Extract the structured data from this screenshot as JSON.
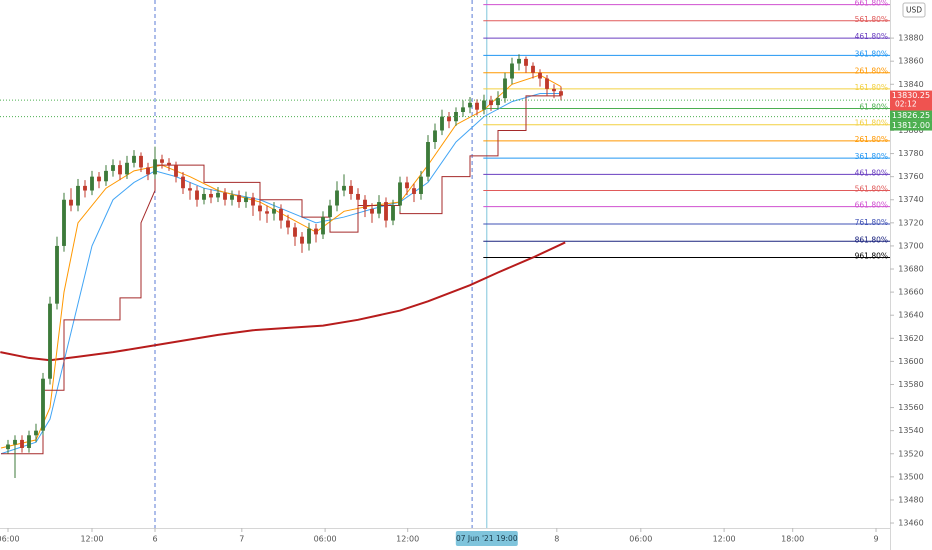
{
  "chart_data": {
    "type": "candlestick",
    "currency": "USD",
    "xlim": [
      -1.143,
      126
    ],
    "ylim": [
      13455.7,
      13913
    ],
    "xticks": [
      {
        "value": 0,
        "label": "06:00"
      },
      {
        "value": 12,
        "label": "12:00"
      },
      {
        "value": 21,
        "label": "6"
      },
      {
        "value": 33.4,
        "label": "7"
      },
      {
        "value": 45.3,
        "label": "06:00"
      },
      {
        "value": 57.1,
        "label": "12:00"
      },
      {
        "value": 78.4,
        "label": "8"
      },
      {
        "value": 90.4,
        "label": "06:00"
      },
      {
        "value": 102.3,
        "label": "12:00"
      },
      {
        "value": 112.1,
        "label": "18:00"
      },
      {
        "value": 124,
        "label": "9"
      }
    ],
    "yticks": [
      13460,
      13480,
      13500,
      13520,
      13540,
      13560,
      13580,
      13600,
      13620,
      13640,
      13660,
      13680,
      13700,
      13720,
      13740,
      13760,
      13780,
      13800,
      13820,
      13840,
      13860,
      13880
    ],
    "candles": {
      "up_color": "#3d7a3a",
      "down_color": "#c0392b",
      "x": [
        0,
        1,
        2,
        3,
        4,
        5,
        6,
        7,
        8,
        9,
        10,
        11,
        12,
        13,
        14,
        15,
        16,
        17,
        18,
        19,
        20,
        21,
        22,
        23,
        24,
        25,
        26,
        27,
        28,
        29,
        30,
        31,
        32,
        33,
        34,
        35,
        36,
        37,
        38,
        39,
        40,
        41,
        42,
        43,
        44,
        45,
        46,
        47,
        48,
        49,
        50,
        51,
        52,
        53,
        54,
        55,
        56,
        57,
        58,
        59,
        60,
        61,
        62,
        63,
        64,
        65,
        66,
        67,
        68,
        69,
        70,
        71,
        72,
        73,
        74,
        75,
        76,
        77,
        78,
        79
      ],
      "open": [
        13524,
        13528,
        13532,
        13525,
        13536,
        13540,
        13585,
        13650,
        13700,
        13740,
        13735,
        13752,
        13748,
        13760,
        13756,
        13765,
        13770,
        13762,
        13772,
        13778,
        13768,
        13762,
        13775,
        13772,
        13770,
        13760,
        13750,
        13748,
        13740,
        13745,
        13742,
        13746,
        13740,
        13744,
        13738,
        13742,
        13735,
        13730,
        13728,
        13732,
        13722,
        13716,
        13708,
        13702,
        13715,
        13710,
        13725,
        13735,
        13748,
        13752,
        13745,
        13740,
        13732,
        13728,
        13738,
        13722,
        13735,
        13755,
        13750,
        13745,
        13760,
        13790,
        13800,
        13812,
        13808,
        13816,
        13820,
        13824,
        13818,
        13826,
        13822,
        13828,
        13845,
        13858,
        13862,
        13856,
        13850,
        13845,
        13836,
        13834
      ],
      "high": [
        13532,
        13536,
        13536,
        13540,
        13546,
        13590,
        13656,
        13708,
        13746,
        13750,
        13758,
        13757,
        13765,
        13764,
        13770,
        13775,
        13774,
        13778,
        13783,
        13781,
        13772,
        13786,
        13779,
        13776,
        13773,
        13764,
        13755,
        13752,
        13750,
        13749,
        13751,
        13750,
        13748,
        13748,
        13747,
        13746,
        13740,
        13735,
        13738,
        13736,
        13727,
        13720,
        13712,
        13720,
        13719,
        13730,
        13740,
        13756,
        13762,
        13757,
        13750,
        13744,
        13737,
        13744,
        13742,
        13740,
        13760,
        13760,
        13754,
        13765,
        13796,
        13806,
        13818,
        13816,
        13820,
        13826,
        13829,
        13827,
        13831,
        13830,
        13834,
        13850,
        13863,
        13866,
        13864,
        13859,
        13853,
        13848,
        13840,
        13838
      ],
      "low": [
        13520,
        13499,
        13521,
        13521,
        13530,
        13536,
        13580,
        13645,
        13695,
        13730,
        13730,
        13742,
        13744,
        13750,
        13752,
        13760,
        13757,
        13758,
        13768,
        13764,
        13757,
        13758,
        13767,
        13765,
        13755,
        13745,
        13740,
        13734,
        13736,
        13737,
        13738,
        13735,
        13735,
        13733,
        13733,
        13726,
        13722,
        13720,
        13722,
        13715,
        13710,
        13700,
        13694,
        13696,
        13703,
        13706,
        13720,
        13730,
        13743,
        13740,
        13733,
        13725,
        13720,
        13724,
        13716,
        13718,
        13730,
        13744,
        13738,
        13740,
        13756,
        13784,
        13796,
        13802,
        13804,
        13812,
        13815,
        13813,
        13814,
        13817,
        13818,
        13824,
        13840,
        13852,
        13850,
        13845,
        13838,
        13830,
        13828,
        13826
      ],
      "close": [
        13528,
        13532,
        13525,
        13536,
        13540,
        13585,
        13650,
        13700,
        13740,
        13735,
        13752,
        13748,
        13760,
        13756,
        13765,
        13770,
        13762,
        13772,
        13778,
        13768,
        13762,
        13775,
        13772,
        13770,
        13760,
        13750,
        13748,
        13740,
        13745,
        13742,
        13746,
        13740,
        13744,
        13738,
        13742,
        13735,
        13730,
        13728,
        13732,
        13722,
        13716,
        13708,
        13702,
        13715,
        13710,
        13725,
        13735,
        13748,
        13752,
        13745,
        13740,
        13732,
        13728,
        13738,
        13722,
        13735,
        13755,
        13750,
        13745,
        13760,
        13790,
        13800,
        13812,
        13808,
        13816,
        13820,
        13824,
        13818,
        13826,
        13822,
        13828,
        13845,
        13858,
        13862,
        13856,
        13850,
        13845,
        13836,
        13834,
        13830.25
      ]
    },
    "indicators": [
      {
        "color": "#b71c1c",
        "width": 2,
        "x": [
          -1.1,
          3,
          6,
          10,
          15,
          21,
          25,
          30,
          35,
          40,
          45,
          50,
          56,
          60,
          66,
          70,
          75,
          79.6
        ],
        "values": [
          13608,
          13603,
          13601,
          13604,
          13608,
          13614,
          13618,
          13623,
          13627,
          13629,
          13631,
          13636,
          13644,
          13652,
          13666,
          13677,
          13690,
          13703
        ]
      },
      {
        "color": "#42a5f5",
        "width": 1,
        "x": [
          -1,
          4,
          6,
          8,
          10,
          12,
          15,
          18,
          21,
          24,
          28,
          32,
          36,
          40,
          44,
          48,
          52,
          56,
          60,
          64,
          68,
          72,
          76,
          79
        ],
        "values": [
          13520,
          13530,
          13550,
          13600,
          13650,
          13700,
          13740,
          13755,
          13765,
          13760,
          13750,
          13745,
          13740,
          13730,
          13720,
          13725,
          13732,
          13738,
          13755,
          13790,
          13812,
          13825,
          13832,
          13832
        ]
      },
      {
        "color": "#ff9800",
        "width": 1,
        "x": [
          -1,
          4,
          6,
          7,
          8,
          10,
          14,
          18,
          22,
          26,
          30,
          36,
          40,
          44,
          48,
          52,
          56,
          60,
          64,
          68,
          72,
          76,
          79
        ],
        "values": [
          13525,
          13532,
          13560,
          13610,
          13660,
          13720,
          13750,
          13765,
          13770,
          13760,
          13748,
          13738,
          13725,
          13712,
          13730,
          13735,
          13738,
          13770,
          13805,
          13818,
          13840,
          13848,
          13838
        ]
      },
      {
        "color": "#a52a2a",
        "width": 1,
        "x": [
          -1,
          5,
          5,
          8,
          8,
          16,
          16,
          19,
          19,
          21,
          21,
          28,
          28,
          36,
          36,
          42,
          42,
          46,
          46,
          50,
          50,
          56,
          56,
          62,
          62,
          66,
          66,
          70,
          70,
          74,
          74,
          79
        ],
        "values": [
          13520,
          13520,
          13575,
          13575,
          13636,
          13636,
          13655,
          13655,
          13720,
          13748,
          13770,
          13770,
          13755,
          13755,
          13740,
          13740,
          13725,
          13725,
          13712,
          13712,
          13735,
          13735,
          13728,
          13728,
          13760,
          13760,
          13778,
          13778,
          13800,
          13800,
          13830,
          13830
        ]
      }
    ],
    "fib": {
      "start_x": 67.9,
      "levels": [
        {
          "label": "661.80%",
          "value": 13909,
          "color": "#d050d0"
        },
        {
          "label": "561.80%",
          "value": 13895,
          "color": "#e05a5a"
        },
        {
          "label": "461.80%",
          "value": 13880,
          "color": "#6a3fc0"
        },
        {
          "label": "361.80%",
          "value": 13865,
          "color": "#2196f3"
        },
        {
          "label": "261.80%",
          "value": 13850,
          "color": "#ff9800"
        },
        {
          "label": "161.80%",
          "value": 13836,
          "color": "#f2d040"
        },
        {
          "label": "61.80%",
          "value": 13819,
          "color": "#4caf50"
        },
        {
          "label": "161.80%",
          "value": 13805,
          "color": "#f2d040"
        },
        {
          "label": "261.80%",
          "value": 13791,
          "color": "#ff9800"
        },
        {
          "label": "361.80%",
          "value": 13776,
          "color": "#2196f3"
        },
        {
          "label": "461.80%",
          "value": 13762,
          "color": "#6a3fc0"
        },
        {
          "label": "561.80%",
          "value": 13748,
          "color": "#e05a5a"
        },
        {
          "label": "661.80%",
          "value": 13734,
          "color": "#d050d0"
        },
        {
          "label": "761.80%",
          "value": 13719,
          "color": "#3f51b5"
        },
        {
          "label": "861.80%",
          "value": 13704,
          "color": "#1a237e"
        },
        {
          "label": "961.80%",
          "value": 13690,
          "color": "#000000"
        }
      ]
    },
    "axis_tags": [
      {
        "value": 13830.25,
        "label": "13830.25",
        "sub": "02:12",
        "color": "#ef5350"
      },
      {
        "value": 13826.25,
        "label": "13826.25",
        "color": "#4caf50",
        "line": true
      },
      {
        "value": 13812,
        "label": "13812.00",
        "color": "#4caf50",
        "line": true
      }
    ],
    "separators": [
      21,
      66.3
    ],
    "crosshair": {
      "x": 68.4,
      "label": "07 Jun '21 19:00",
      "color": "#7fc4dc"
    }
  }
}
